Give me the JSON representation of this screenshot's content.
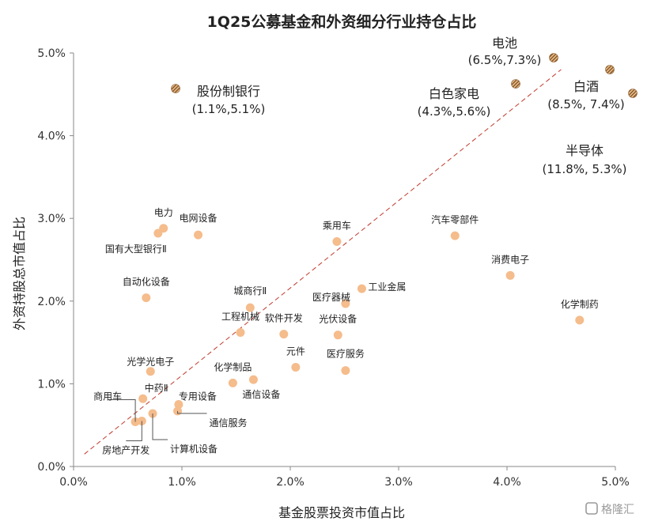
{
  "chart_data": {
    "type": "scatter",
    "title": "1Q25公募基金和外资细分行业持仓占比",
    "xlabel": "基金股票投资市值占比",
    "ylabel": "外资持股总市值占比",
    "xlim": [
      0,
      5
    ],
    "ylim": [
      0,
      5
    ],
    "x_ticks": [
      "0.0%",
      "1.0%",
      "2.0%",
      "3.0%",
      "4.0%",
      "5.0%"
    ],
    "y_ticks": [
      "0.0%",
      "1.0%",
      "2.0%",
      "3.0%",
      "4.0%",
      "5.0%"
    ],
    "reference_line": {
      "from": [
        0.1,
        0.15
      ],
      "to": [
        4.5,
        4.8
      ],
      "style": "dashed"
    },
    "colors": {
      "point": "#f5bc8c",
      "outlier": "#8b5a2b",
      "outlier_stripe": "#f0c896",
      "ref_line": "#c0392b"
    },
    "points": [
      {
        "name": "电力",
        "x": 0.83,
        "y": 2.88
      },
      {
        "name": "国有大型银行Ⅱ",
        "x": 0.78,
        "y": 2.82
      },
      {
        "name": "电网设备",
        "x": 1.15,
        "y": 2.8
      },
      {
        "name": "乘用车",
        "x": 2.43,
        "y": 2.72
      },
      {
        "name": "汽车零部件",
        "x": 3.52,
        "y": 2.79
      },
      {
        "name": "消费电子",
        "x": 4.03,
        "y": 2.31
      },
      {
        "name": "自动化设备",
        "x": 0.67,
        "y": 2.04
      },
      {
        "name": "城商行Ⅱ",
        "x": 1.63,
        "y": 1.92
      },
      {
        "name": "医疗器械",
        "x": 2.51,
        "y": 1.97
      },
      {
        "name": "工业金属",
        "x": 2.66,
        "y": 2.15
      },
      {
        "name": "化学制药",
        "x": 4.67,
        "y": 1.77
      },
      {
        "name": "工程机械",
        "x": 1.54,
        "y": 1.62
      },
      {
        "name": "软件开发",
        "x": 1.94,
        "y": 1.6
      },
      {
        "name": "光伏设备",
        "x": 2.44,
        "y": 1.59
      },
      {
        "name": "元件",
        "x": 2.05,
        "y": 1.2
      },
      {
        "name": "医疗服务",
        "x": 2.51,
        "y": 1.16
      },
      {
        "name": "光学光电子",
        "x": 0.71,
        "y": 1.15
      },
      {
        "name": "化学制品",
        "x": 1.47,
        "y": 1.01
      },
      {
        "name": "通信设备",
        "x": 1.66,
        "y": 1.05
      },
      {
        "name": "中药Ⅱ",
        "x": 0.64,
        "y": 0.82
      },
      {
        "name": "专用设备",
        "x": 0.97,
        "y": 0.75
      },
      {
        "name": "商用车",
        "x": 0.57,
        "y": 0.54
      },
      {
        "name": "通信服务",
        "x": 0.96,
        "y": 0.67
      },
      {
        "name": "房地产开发",
        "x": 0.63,
        "y": 0.55
      },
      {
        "name": "计算机设备",
        "x": 0.73,
        "y": 0.64
      }
    ],
    "offscale_points": [
      {
        "name": "股份制银行",
        "value_label": "(1.1%,5.1%)"
      },
      {
        "name": "电池",
        "value_label": "(6.5%,7.3%)"
      },
      {
        "name": "白色家电",
        "value_label": "(4.3%,5.6%)"
      },
      {
        "name": "白酒",
        "value_label": "(8.5%, 7.4%)"
      },
      {
        "name": "半导体",
        "value_label": "(11.8%, 5.3%)"
      }
    ]
  },
  "watermark": "格隆汇"
}
